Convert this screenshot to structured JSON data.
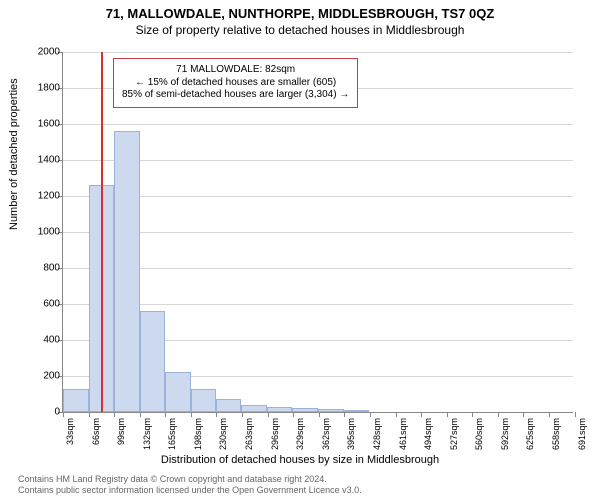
{
  "title": {
    "line1": "71, MALLOWDALE, NUNTHORPE, MIDDLESBROUGH, TS7 0QZ",
    "line2": "Size of property relative to detached houses in Middlesbrough"
  },
  "chart": {
    "type": "histogram",
    "ylabel": "Number of detached properties",
    "xlabel": "Distribution of detached houses by size in Middlesbrough",
    "ylim": [
      0,
      2000
    ],
    "ytick_step": 200,
    "y_ticks": [
      0,
      200,
      400,
      600,
      800,
      1000,
      1200,
      1400,
      1600,
      1800,
      2000
    ],
    "x_tick_labels": [
      "33sqm",
      "66sqm",
      "99sqm",
      "132sqm",
      "165sqm",
      "198sqm",
      "230sqm",
      "263sqm",
      "296sqm",
      "329sqm",
      "362sqm",
      "395sqm",
      "428sqm",
      "461sqm",
      "494sqm",
      "527sqm",
      "560sqm",
      "592sqm",
      "625sqm",
      "658sqm",
      "691sqm"
    ],
    "x_tick_step_sqm": 33,
    "x_min_sqm": 33,
    "x_max_sqm": 691,
    "bars": [
      {
        "x_sqm": 33,
        "value": 130
      },
      {
        "x_sqm": 66,
        "value": 1260
      },
      {
        "x_sqm": 99,
        "value": 1560
      },
      {
        "x_sqm": 132,
        "value": 560
      },
      {
        "x_sqm": 165,
        "value": 220
      },
      {
        "x_sqm": 198,
        "value": 130
      },
      {
        "x_sqm": 230,
        "value": 70
      },
      {
        "x_sqm": 263,
        "value": 40
      },
      {
        "x_sqm": 296,
        "value": 30
      },
      {
        "x_sqm": 329,
        "value": 20
      },
      {
        "x_sqm": 362,
        "value": 15
      },
      {
        "x_sqm": 395,
        "value": 10
      }
    ],
    "bar_fill": "#cdd9ee",
    "bar_border": "#9bb3d9",
    "grid_color": "#d8d8d8",
    "axis_color": "#888888",
    "background_color": "#ffffff",
    "title_fontsize": 13,
    "subtitle_fontsize": 12,
    "label_fontsize": 11,
    "tick_fontsize": 10
  },
  "marker": {
    "x_sqm": 82,
    "color": "#d83030",
    "box_border": "#c04040",
    "box_bg": "#ffffff",
    "lines": [
      "71 MALLOWDALE: 82sqm",
      "← 15% of detached houses are smaller (605)",
      "85% of semi-detached houses are larger (3,304) →"
    ]
  },
  "footer": {
    "line1": "Contains HM Land Registry data © Crown copyright and database right 2024.",
    "line2": "Contains public sector information licensed under the Open Government Licence v3.0."
  }
}
